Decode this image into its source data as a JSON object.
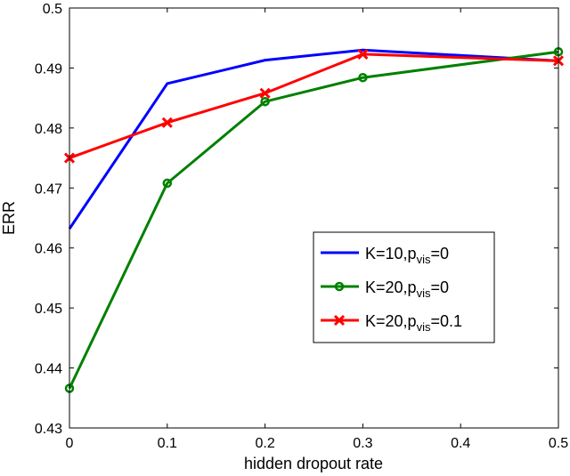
{
  "chart_data": {
    "type": "line",
    "title": "",
    "xlabel": "hidden dropout rate",
    "ylabel": "ERR",
    "xlim": [
      0,
      0.5
    ],
    "ylim": [
      0.43,
      0.5
    ],
    "xticks": [
      "0",
      "0.1",
      "0.2",
      "0.3",
      "0.4",
      "0.5"
    ],
    "yticks": [
      "0.43",
      "0.44",
      "0.45",
      "0.46",
      "0.47",
      "0.48",
      "0.49",
      "0.5"
    ],
    "grid": false,
    "legend_position": "center-right",
    "x": [
      0,
      0.1,
      0.2,
      0.3,
      0.5
    ],
    "series": [
      {
        "name": "K=10,p_vis=0",
        "label_main": "K=10,p",
        "label_sub": "vis",
        "label_tail": "=0",
        "color": "#0000ff",
        "marker": "none",
        "values": [
          0.4632,
          0.4874,
          0.4913,
          0.493,
          0.4912
        ]
      },
      {
        "name": "K=20,p_vis=0",
        "label_main": "K=20,p",
        "label_sub": "vis",
        "label_tail": "=0",
        "color": "#008000",
        "marker": "circle",
        "values": [
          0.4366,
          0.4708,
          0.4844,
          0.4884,
          0.4927
        ]
      },
      {
        "name": "K=20,p_vis=0.1",
        "label_main": "K=20,p",
        "label_sub": "vis",
        "label_tail": "=0.1",
        "color": "#ff0000",
        "marker": "x",
        "values": [
          0.475,
          0.4809,
          0.4858,
          0.4923,
          0.4912
        ]
      }
    ]
  }
}
